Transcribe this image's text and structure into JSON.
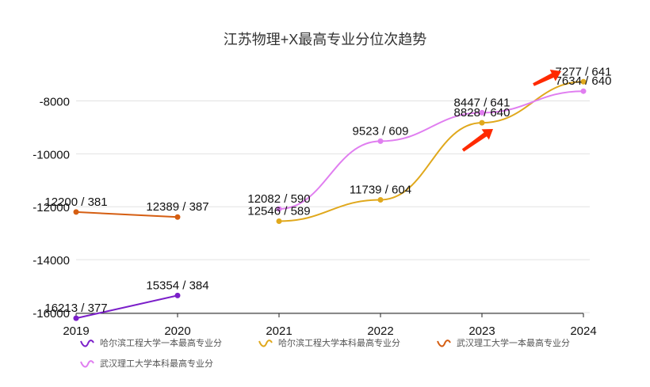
{
  "chart_data": {
    "type": "line",
    "title": "江苏物理+X最高专业分位次趋势",
    "x": [
      "2019",
      "2020",
      "2021",
      "2022",
      "2023",
      "2024"
    ],
    "ylim": [
      -16000,
      -7000
    ],
    "y_ticks": [
      "-8000",
      "-10000",
      "-12000",
      "-14000",
      "-16000"
    ],
    "y_tick_values": [
      -8000,
      -10000,
      -12000,
      -14000,
      -16000
    ],
    "grid": true,
    "legend_position": "bottom",
    "series": [
      {
        "name": "哈尔滨工程大学一本最高专业分",
        "color": "#7b1fc9",
        "points": [
          {
            "x": "2019",
            "y": -16213,
            "label": "16213 / 377"
          },
          {
            "x": "2020",
            "y": -15354,
            "label": "15354 / 384"
          }
        ]
      },
      {
        "name": "哈尔滨工程大学本科最高专业分",
        "color": "#e0a81c",
        "points": [
          {
            "x": "2021",
            "y": -12546,
            "label": "12546 / 589"
          },
          {
            "x": "2022",
            "y": -11739,
            "label": "11739 / 604"
          },
          {
            "x": "2023",
            "y": -8828,
            "label": "8828 / 640"
          },
          {
            "x": "2024",
            "y": -7277,
            "label": "7277 / 641"
          }
        ]
      },
      {
        "name": "武汉理工大学一本最高专业分",
        "color": "#d55e12",
        "points": [
          {
            "x": "2019",
            "y": -12200,
            "label": "12200 / 381"
          },
          {
            "x": "2020",
            "y": -12389,
            "label": "12389 / 387"
          }
        ]
      },
      {
        "name": "武汉理工大学本科最高专业分",
        "color": "#e07ef0",
        "points": [
          {
            "x": "2021",
            "y": -12082,
            "label": "12082 / 590"
          },
          {
            "x": "2022",
            "y": -9523,
            "label": "9523 / 609"
          },
          {
            "x": "2023",
            "y": -8447,
            "label": "8447 / 641"
          },
          {
            "x": "2024",
            "y": -7634,
            "label": "7634 / 640"
          }
        ]
      }
    ],
    "annotations": [
      {
        "type": "arrow",
        "color": "#ff2a00",
        "near": "2023"
      },
      {
        "type": "arrow",
        "color": "#ff2a00",
        "near": "2024"
      }
    ]
  }
}
